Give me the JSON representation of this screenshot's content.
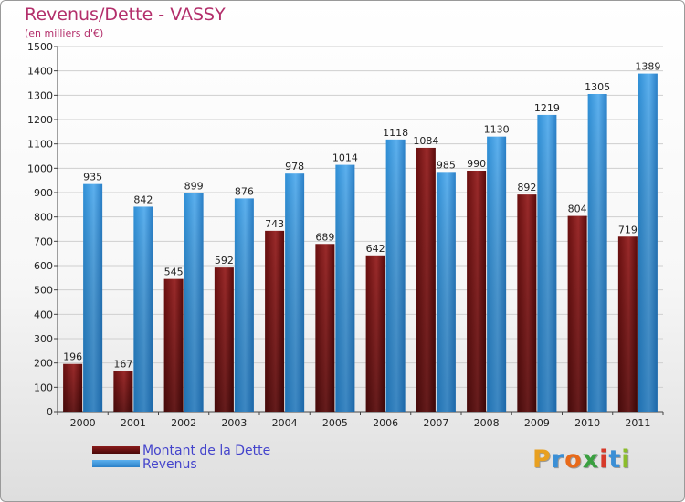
{
  "header": {
    "title": "Revenus/Dette - VASSY",
    "subtitle": "(en milliers d'€)"
  },
  "logo": {
    "text": "Proxiti",
    "colors": [
      "#e8a020",
      "#3a8fd6",
      "#e86a1a",
      "#3aa040",
      "#d63a2a",
      "#3a8fd6",
      "#8bbd2a"
    ]
  },
  "chart_data": {
    "type": "bar",
    "title": "Revenus/Dette - VASSY",
    "subtitle": "(en milliers d'€)",
    "categories": [
      "2000",
      "2001",
      "2002",
      "2003",
      "2004",
      "2005",
      "2006",
      "2007",
      "2008",
      "2009",
      "2010",
      "2011"
    ],
    "series": [
      {
        "name": "Montant de la Dette",
        "color": "#8a1c1c",
        "values": [
          196,
          167,
          545,
          592,
          743,
          689,
          642,
          1084,
          990,
          892,
          804,
          719
        ]
      },
      {
        "name": "Revenus",
        "color": "#3d9ce0",
        "values": [
          935,
          842,
          899,
          876,
          978,
          1014,
          1118,
          985,
          1130,
          1219,
          1305,
          1389
        ]
      }
    ],
    "ylim": [
      0,
      1500
    ],
    "yticks": [
      0,
      100,
      200,
      300,
      400,
      500,
      600,
      700,
      800,
      900,
      1000,
      1100,
      1200,
      1300,
      1400,
      1500
    ],
    "grid": true,
    "legend_position": "bottom-left"
  }
}
